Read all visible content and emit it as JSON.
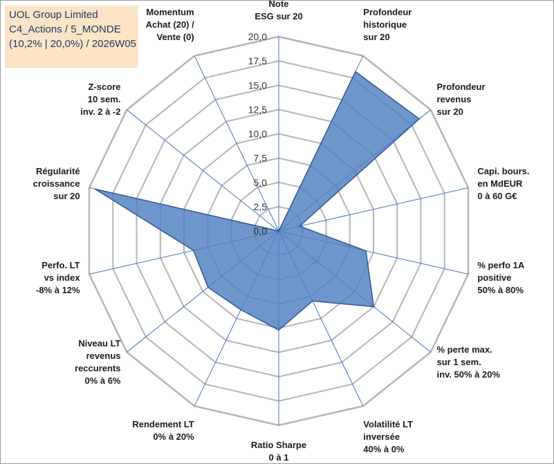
{
  "header": {
    "line1": "UOL Group Limited",
    "line2": "C4_Actions / 5_MONDE",
    "line3": "(10,2% | 20,0%) / 2026W05"
  },
  "colors": {
    "fill": "#4f7fbf",
    "stroke": "#2f5597",
    "grid": "#b4b4b4",
    "spoke": "#4472c4",
    "title_bg": "#fbe5c6"
  },
  "chart_data": {
    "type": "radar",
    "title": "UOL Group Limited",
    "rlim": [
      0,
      20
    ],
    "ticks": [
      "0,0",
      "2,5",
      "5,0",
      "7,5",
      "10,0",
      "12,5",
      "15,0",
      "17,5",
      "20,0"
    ],
    "tick_values": [
      0,
      2.5,
      5,
      7.5,
      10,
      12.5,
      15,
      17.5,
      20
    ],
    "axes": [
      {
        "label": [
          "Note",
          "ESG sur 20"
        ],
        "value": 0
      },
      {
        "label": [
          "Profondeur",
          "historique",
          "sur 20"
        ],
        "value": 18.2
      },
      {
        "label": [
          "Profondeur",
          "revenus",
          "sur 20"
        ],
        "value": 18.5
      },
      {
        "label": [
          "Capi. bours.",
          "en MdEUR",
          "0 à 60 G€"
        ],
        "value": 2.2
      },
      {
        "label": [
          "% perfo 1A",
          "positive",
          "50% à 80%"
        ],
        "value": 9.2
      },
      {
        "label": [
          "% perte max.",
          "sur 1 sem.",
          "inv. 50% à 20%"
        ],
        "value": 12.5
      },
      {
        "label": [
          "Volatilité LT",
          "inversée",
          "40% à 0%"
        ],
        "value": 8.0
      },
      {
        "label": [
          "Ratio Sharpe",
          "0 à 1"
        ],
        "value": 10.2
      },
      {
        "label": [
          "Rendement LT",
          "0% à 20%"
        ],
        "value": 9.0
      },
      {
        "label": [
          "Niveau LT",
          "revenus",
          "reccurents",
          "0% à 6%"
        ],
        "value": 9.3
      },
      {
        "label": [
          "Perfo. LT",
          "vs index",
          "-8% à 12%"
        ],
        "value": 9.0
      },
      {
        "label": [
          "Régularité",
          "croissance",
          "sur 20"
        ],
        "value": 19.4
      },
      {
        "label": [
          "Z-score",
          "10 sem.",
          "inv. 2 à -2"
        ],
        "value": 0
      },
      {
        "label": [
          "Momentum",
          "Achat (20) /",
          "Vente (0)"
        ],
        "value": 0
      }
    ]
  }
}
